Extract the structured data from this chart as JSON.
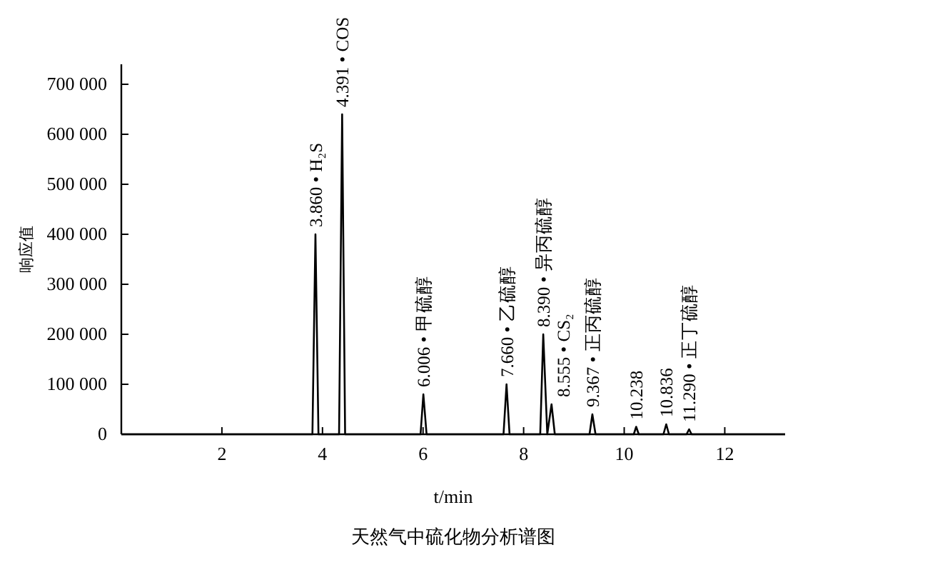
{
  "chart_data": {
    "type": "line",
    "title": "天然气中硫化物分析谱图",
    "xlabel": "t/min",
    "ylabel": "响应值",
    "series": [
      {
        "color": "#000000",
        "x": [
          0,
          3.8,
          3.86,
          3.92,
          4.33,
          4.391,
          4.45,
          5.95,
          6.006,
          6.07,
          7.6,
          7.66,
          7.72,
          8.33,
          8.39,
          8.47,
          8.555,
          8.62,
          9.31,
          9.367,
          9.43,
          10.19,
          10.238,
          10.29,
          10.78,
          10.836,
          10.89,
          11.24,
          11.29,
          11.34,
          13.2
        ],
        "values": [
          0,
          0,
          400000,
          0,
          0,
          640000,
          0,
          0,
          80000,
          0,
          0,
          100000,
          0,
          0,
          200000,
          0,
          60000,
          0,
          0,
          40000,
          0,
          0,
          15000,
          0,
          0,
          20000,
          0,
          0,
          10000,
          0,
          0
        ]
      }
    ],
    "xlim": [
      0,
      13.2
    ],
    "xticks": [
      2,
      4,
      6,
      8,
      10,
      12
    ],
    "ylim": [
      0,
      740000
    ],
    "yticks": [
      0,
      {
        "value": 100000,
        "label": "100 000"
      },
      {
        "value": 200000,
        "label": "200 000"
      },
      {
        "value": 300000,
        "label": "300 000"
      },
      {
        "value": 400000,
        "label": "400 000"
      },
      {
        "value": 500000,
        "label": "500 000"
      },
      {
        "value": 600000,
        "label": "600 000"
      },
      {
        "value": 700000,
        "label": "700 000"
      }
    ],
    "grid": false,
    "marker": "none",
    "line_style": "solid",
    "annotations": [
      {
        "text": "3.860 • H₂S",
        "x": 3.86,
        "y": 400000
      },
      {
        "text": "4.391 • COS",
        "x": 4.391,
        "y": 640000
      },
      {
        "text": "6.006 • 甲硫醇",
        "x": 6.006,
        "y": 80000
      },
      {
        "text": "7.660 • 乙硫醇",
        "x": 7.66,
        "y": 100000
      },
      {
        "text": "8.390 • 异丙硫醇",
        "x": 8.39,
        "y": 200000
      },
      {
        "text": "8.555 • CS₂",
        "x": 8.555,
        "y": 60000
      },
      {
        "text": "9.367 • 正丙硫醇",
        "x": 9.367,
        "y": 40000
      },
      {
        "text": "10.238",
        "x": 10.238,
        "y": 15000
      },
      {
        "text": "10.836",
        "x": 10.836,
        "y": 20000
      },
      {
        "text": "11.290 • 正丁硫醇",
        "x": 11.29,
        "y": 10000
      }
    ]
  }
}
